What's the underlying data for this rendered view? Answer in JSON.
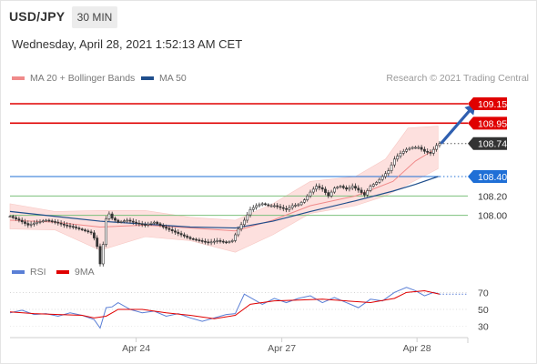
{
  "header": {
    "symbol": "USD/JPY",
    "timeframe": "30 MIN",
    "datetime": "Wednesday, April 28, 2021 1:52:13 AM CET",
    "credit": "Research © 2021 Trading Central"
  },
  "legend": {
    "ma20": "MA 20 + Bollinger Bands",
    "ma50": "MA 50",
    "rsi": "RSI",
    "ma9": "9MA"
  },
  "colors": {
    "resistance": "#e00000",
    "support": "#1f6fd6",
    "green_level": "#7bc07b",
    "ma20": "#f08a8a",
    "bollinger_fill": "#fde0de",
    "ma50": "#1f4e8c",
    "arrow": "#2f5fb0",
    "candle": "#333333",
    "rsi": "#5a7fd6",
    "ma9": "#e00000",
    "current_label": "#333333"
  },
  "chart_data": [
    {
      "type": "candlestick",
      "title": "USD/JPY 30 MIN",
      "x_ticks": [
        "Apr 24",
        "Apr 27",
        "Apr 28"
      ],
      "ylim": [
        107.5,
        109.3
      ],
      "price_labels": [
        {
          "value": 109.15,
          "text": "109.15",
          "kind": "resistance"
        },
        {
          "value": 108.95,
          "text": "108.95",
          "kind": "resistance"
        },
        {
          "value": 108.74,
          "text": "108.74",
          "kind": "current"
        },
        {
          "value": 108.4,
          "text": "108.40",
          "kind": "support"
        },
        {
          "value": 108.2,
          "text": "108.20",
          "kind": "level"
        },
        {
          "value": 108.0,
          "text": "108.00",
          "kind": "level"
        }
      ],
      "price_path": [
        [
          0,
          107.99
        ],
        [
          6,
          107.95
        ],
        [
          12,
          107.9
        ],
        [
          18,
          107.93
        ],
        [
          24,
          107.95
        ],
        [
          30,
          107.93
        ],
        [
          36,
          107.9
        ],
        [
          42,
          107.88
        ],
        [
          48,
          107.85
        ],
        [
          54,
          107.82
        ],
        [
          57,
          107.74
        ],
        [
          59,
          107.62
        ],
        [
          60,
          107.5
        ],
        [
          62,
          107.7
        ],
        [
          63,
          107.88
        ],
        [
          65,
          108.05
        ],
        [
          67,
          107.98
        ],
        [
          72,
          107.93
        ],
        [
          78,
          107.95
        ],
        [
          84,
          107.92
        ],
        [
          90,
          107.9
        ],
        [
          96,
          107.93
        ],
        [
          102,
          107.88
        ],
        [
          108,
          107.84
        ],
        [
          114,
          107.8
        ],
        [
          120,
          107.76
        ],
        [
          126,
          107.74
        ],
        [
          132,
          107.72
        ],
        [
          138,
          107.74
        ],
        [
          144,
          107.72
        ],
        [
          148,
          107.74
        ],
        [
          152,
          107.86
        ],
        [
          156,
          107.95
        ],
        [
          160,
          108.06
        ],
        [
          164,
          108.1
        ],
        [
          168,
          108.12
        ],
        [
          172,
          108.1
        ],
        [
          176,
          108.1
        ],
        [
          180,
          108.08
        ],
        [
          184,
          108.06
        ],
        [
          188,
          108.1
        ],
        [
          192,
          108.11
        ],
        [
          196,
          108.16
        ],
        [
          200,
          108.24
        ],
        [
          204,
          108.3
        ],
        [
          208,
          108.27
        ],
        [
          212,
          108.2
        ],
        [
          216,
          108.28
        ],
        [
          220,
          108.3
        ],
        [
          224,
          108.27
        ],
        [
          228,
          108.3
        ],
        [
          232,
          108.26
        ],
        [
          236,
          108.21
        ],
        [
          240,
          108.3
        ],
        [
          244,
          108.34
        ],
        [
          248,
          108.4
        ],
        [
          252,
          108.46
        ],
        [
          256,
          108.58
        ],
        [
          260,
          108.64
        ],
        [
          264,
          108.68
        ],
        [
          268,
          108.7
        ],
        [
          272,
          108.7
        ],
        [
          276,
          108.66
        ],
        [
          280,
          108.64
        ],
        [
          284,
          108.72
        ],
        [
          286,
          108.74
        ]
      ],
      "ma20_path": [
        [
          0,
          107.95
        ],
        [
          30,
          107.93
        ],
        [
          60,
          107.88
        ],
        [
          90,
          107.9
        ],
        [
          120,
          107.87
        ],
        [
          150,
          107.84
        ],
        [
          175,
          107.95
        ],
        [
          200,
          108.1
        ],
        [
          230,
          108.2
        ],
        [
          255,
          108.35
        ],
        [
          270,
          108.56
        ],
        [
          285,
          108.7
        ]
      ],
      "bollinger_upper": [
        [
          0,
          108.12
        ],
        [
          30,
          108.04
        ],
        [
          60,
          108.05
        ],
        [
          90,
          108.05
        ],
        [
          120,
          107.98
        ],
        [
          150,
          107.95
        ],
        [
          175,
          108.12
        ],
        [
          200,
          108.35
        ],
        [
          230,
          108.4
        ],
        [
          250,
          108.58
        ],
        [
          265,
          108.9
        ],
        [
          285,
          108.92
        ]
      ],
      "bollinger_lower": [
        [
          0,
          107.86
        ],
        [
          30,
          107.85
        ],
        [
          60,
          107.64
        ],
        [
          90,
          107.78
        ],
        [
          120,
          107.74
        ],
        [
          150,
          107.62
        ],
        [
          175,
          107.8
        ],
        [
          200,
          108.02
        ],
        [
          230,
          108.1
        ],
        [
          250,
          108.2
        ],
        [
          265,
          108.32
        ],
        [
          285,
          108.48
        ]
      ],
      "ma50_path": [
        [
          0,
          108.04
        ],
        [
          30,
          107.99
        ],
        [
          60,
          107.94
        ],
        [
          90,
          107.91
        ],
        [
          120,
          107.88
        ],
        [
          150,
          107.87
        ],
        [
          175,
          107.94
        ],
        [
          200,
          108.04
        ],
        [
          230,
          108.15
        ],
        [
          255,
          108.25
        ],
        [
          270,
          108.32
        ],
        [
          285,
          108.4
        ]
      ],
      "projection_arrow": {
        "from": [
          287,
          108.74
        ],
        "to": [
          310,
          109.15
        ]
      }
    },
    {
      "type": "line",
      "title": "RSI",
      "ylim": [
        20,
        80
      ],
      "y_ticks": [
        70,
        50,
        30
      ],
      "series": [
        {
          "name": "RSI",
          "values": [
            [
              0,
              46
            ],
            [
              8,
              49
            ],
            [
              16,
              44
            ],
            [
              24,
              45
            ],
            [
              32,
              42
            ],
            [
              40,
              46
            ],
            [
              48,
              43
            ],
            [
              56,
              38
            ],
            [
              60,
              28
            ],
            [
              64,
              52
            ],
            [
              68,
              53
            ],
            [
              72,
              58
            ],
            [
              80,
              50
            ],
            [
              88,
              46
            ],
            [
              96,
              48
            ],
            [
              104,
              42
            ],
            [
              112,
              45
            ],
            [
              120,
              40
            ],
            [
              128,
              36
            ],
            [
              136,
              40
            ],
            [
              144,
              44
            ],
            [
              150,
              45
            ],
            [
              156,
              68
            ],
            [
              162,
              62
            ],
            [
              168,
              56
            ],
            [
              176,
              63
            ],
            [
              184,
              58
            ],
            [
              192,
              63
            ],
            [
              200,
              66
            ],
            [
              208,
              58
            ],
            [
              216,
              64
            ],
            [
              224,
              58
            ],
            [
              232,
              52
            ],
            [
              240,
              62
            ],
            [
              248,
              60
            ],
            [
              256,
              70
            ],
            [
              264,
              76
            ],
            [
              270,
              72
            ],
            [
              276,
              66
            ],
            [
              282,
              70
            ],
            [
              286,
              68
            ]
          ]
        },
        {
          "name": "9MA",
          "values": [
            [
              0,
              47
            ],
            [
              16,
              45
            ],
            [
              32,
              44
            ],
            [
              48,
              43
            ],
            [
              56,
              40
            ],
            [
              64,
              42
            ],
            [
              72,
              50
            ],
            [
              88,
              50
            ],
            [
              104,
              46
            ],
            [
              120,
              43
            ],
            [
              136,
              39
            ],
            [
              150,
              43
            ],
            [
              160,
              56
            ],
            [
              176,
              60
            ],
            [
              192,
              61
            ],
            [
              208,
              62
            ],
            [
              224,
              60
            ],
            [
              240,
              58
            ],
            [
              256,
              63
            ],
            [
              264,
              70
            ],
            [
              276,
              72
            ],
            [
              286,
              68
            ]
          ]
        }
      ]
    }
  ]
}
